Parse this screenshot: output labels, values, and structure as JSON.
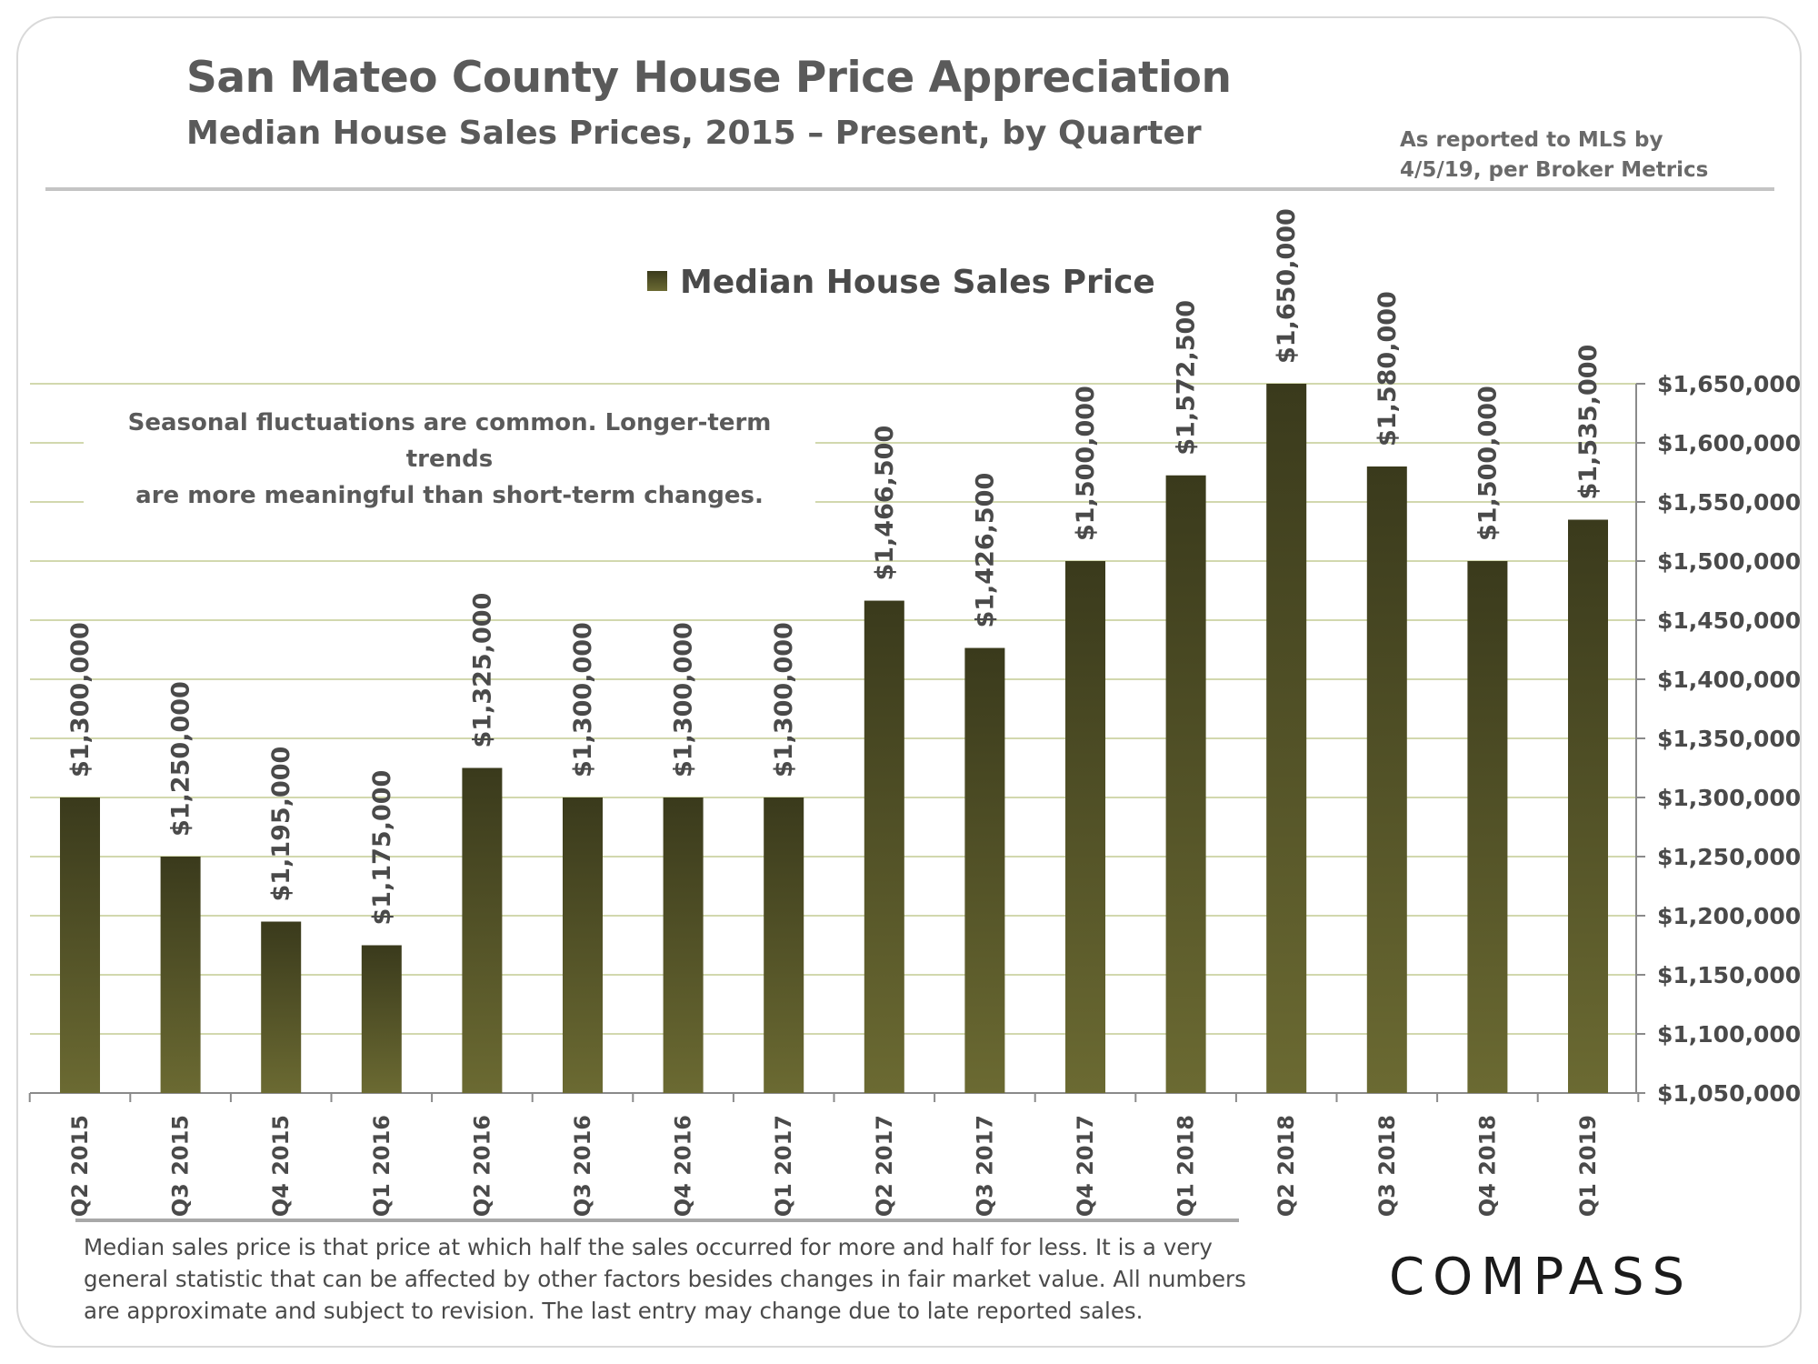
{
  "header": {
    "title": "San Mateo County House Price Appreciation",
    "subtitle": "Median House Sales Prices, 2015 – Present, by Quarter",
    "source_line1": "As reported to MLS by",
    "source_line2": "4/5/19, per Broker Metrics"
  },
  "note": {
    "line1": "Seasonal fluctuations are common. Longer-term trends",
    "line2": "are more meaningful than short-term changes."
  },
  "footnote": {
    "line1": "Median sales price is that price at which half the sales occurred for more and half for less. It is a very",
    "line2": "general statistic that can be affected by other factors besides changes in fair market value. All numbers",
    "line3": "are approximate and subject to revision. The last entry may change due to late reported sales."
  },
  "logo": "COMPASS",
  "colors": {
    "bar_top": "#3a3a1c",
    "bar_bottom": "#6b6a32",
    "grid": "#d2d8ae",
    "text": "#4a4a4a"
  },
  "chart_data": {
    "type": "bar",
    "categories": [
      "Q2 2015",
      "Q3 2015",
      "Q4 2015",
      "Q1 2016",
      "Q2 2016",
      "Q3 2016",
      "Q4 2016",
      "Q1 2017",
      "Q2 2017",
      "Q3 2017",
      "Q4 2017",
      "Q1 2018",
      "Q2 2018",
      "Q3 2018",
      "Q4 2018",
      "Q1 2019"
    ],
    "series": [
      {
        "name": "Median House Sales Price",
        "values": [
          1300000,
          1250000,
          1195000,
          1175000,
          1325000,
          1300000,
          1300000,
          1300000,
          1466500,
          1426500,
          1500000,
          1572500,
          1650000,
          1580000,
          1500000,
          1535000
        ]
      }
    ],
    "data_labels": [
      "$1,300,000",
      "$1,250,000",
      "$1,195,000",
      "$1,175,000",
      "$1,325,000",
      "$1,300,000",
      "$1,300,000",
      "$1,300,000",
      "$1,466,500",
      "$1,426,500",
      "$1,500,000",
      "$1,572,500",
      "$1,650,000",
      "$1,580,000",
      "$1,500,000",
      "$1,535,000"
    ],
    "ylim": [
      1050000,
      1650000
    ],
    "y_ticks": [
      1050000,
      1100000,
      1150000,
      1200000,
      1250000,
      1300000,
      1350000,
      1400000,
      1450000,
      1500000,
      1550000,
      1600000,
      1650000
    ],
    "y_tick_labels": [
      "$1,050,000",
      "$1,100,000",
      "$1,150,000",
      "$1,200,000",
      "$1,250,000",
      "$1,300,000",
      "$1,350,000",
      "$1,400,000",
      "$1,450,000",
      "$1,500,000",
      "$1,550,000",
      "$1,600,000",
      "$1,650,000"
    ],
    "y_axis_side": "right",
    "legend_position": "top-center",
    "grid": true,
    "xlabel": "",
    "ylabel": ""
  }
}
